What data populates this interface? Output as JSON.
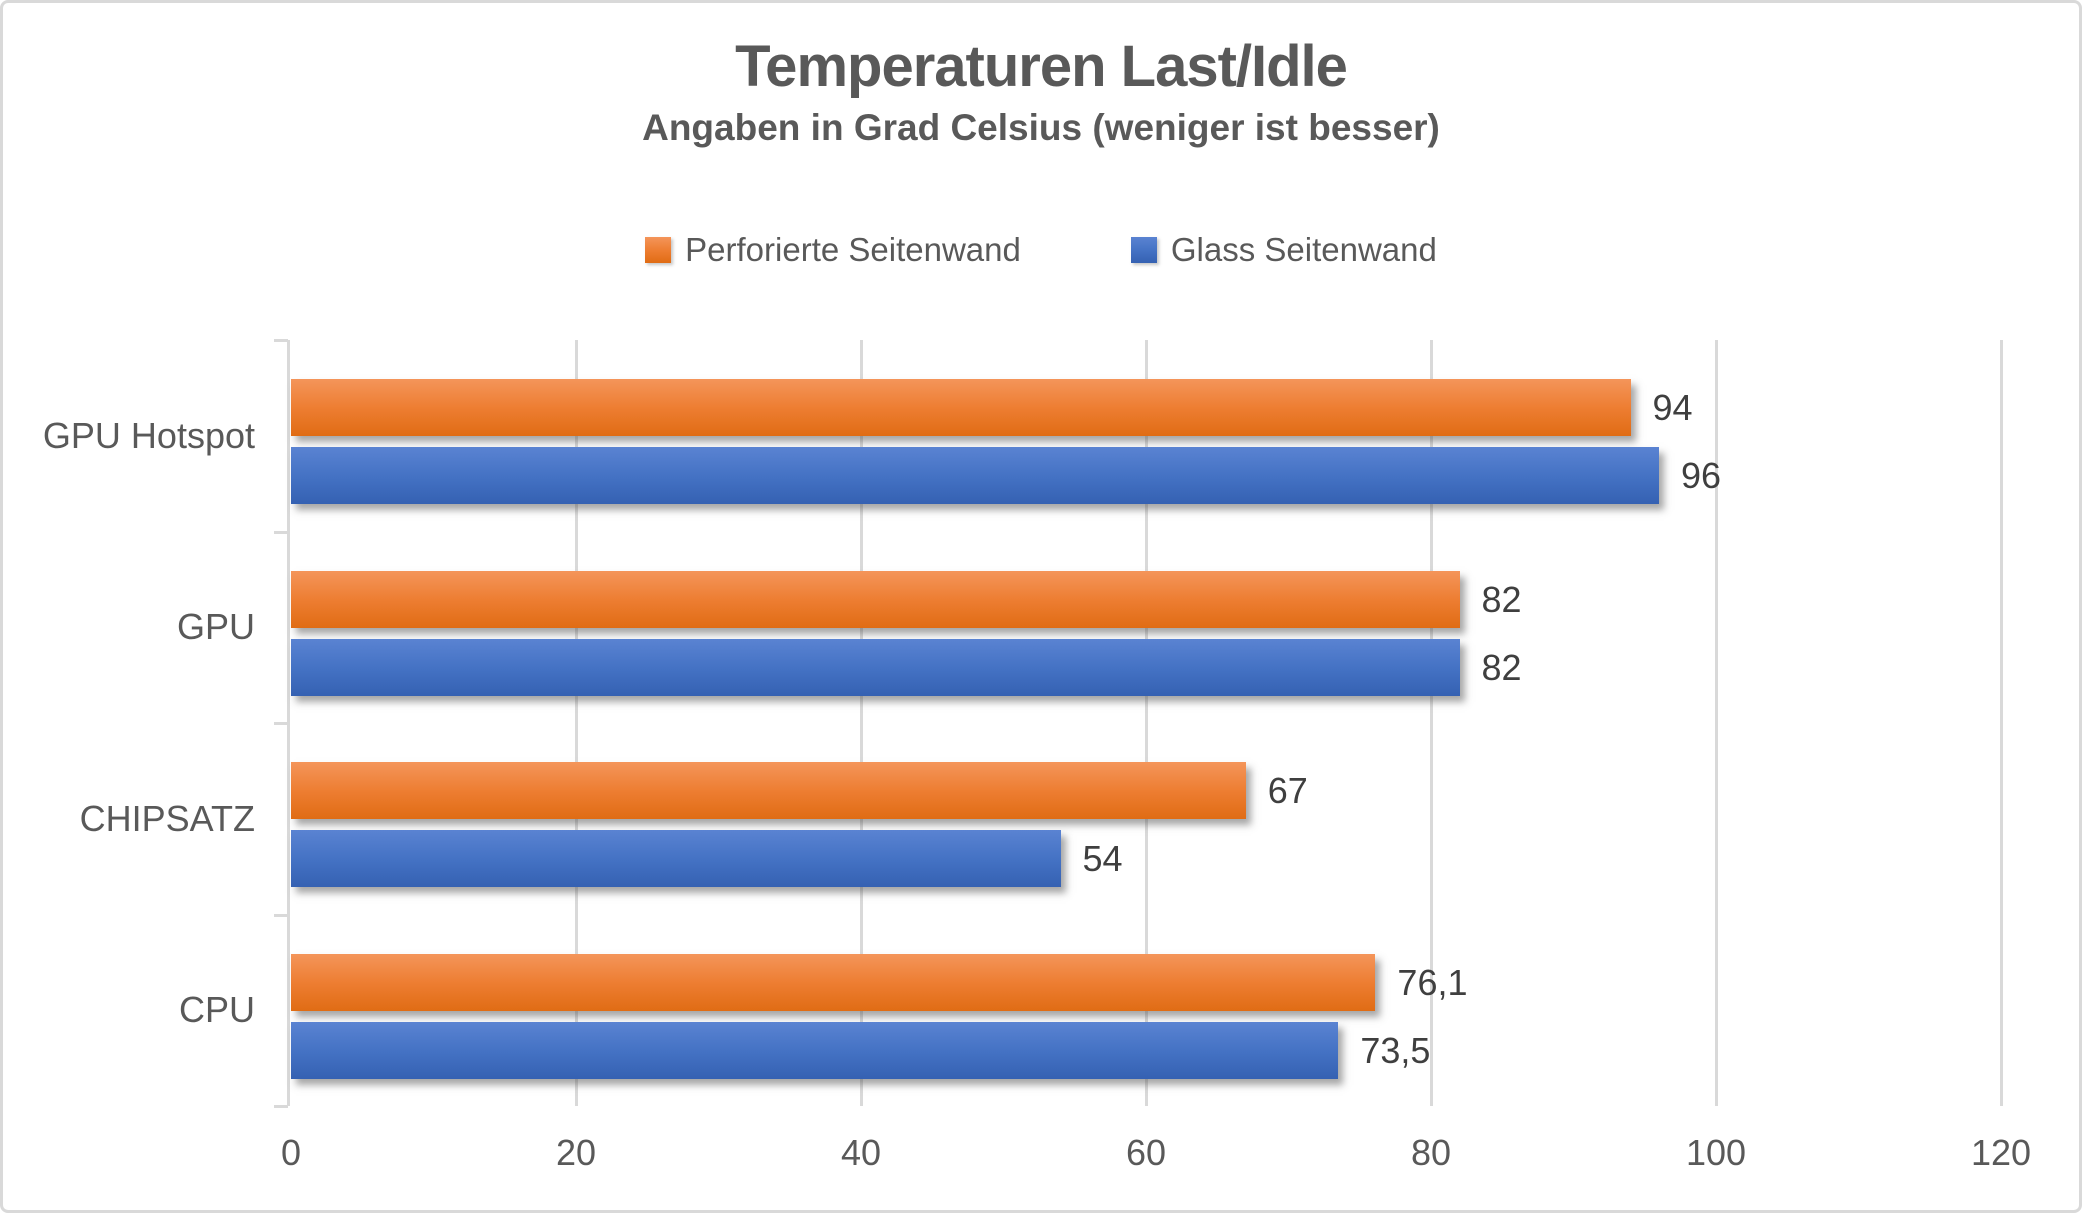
{
  "chart_data": {
    "type": "bar",
    "orientation": "horizontal",
    "title": "Temperaturen Last/Idle",
    "subtitle": "Angaben in Grad Celsius (weniger ist besser)",
    "categories": [
      "GPU Hotspot",
      "GPU",
      "CHIPSATZ",
      "CPU"
    ],
    "series": [
      {
        "name": "Perforierte Seitenwand",
        "color": "#ED7D31",
        "color_gradient": [
          "#F4955A",
          "#E06C14"
        ],
        "values": [
          94,
          82,
          67,
          76.1
        ],
        "value_labels": [
          "94",
          "82",
          "67",
          "76,1"
        ]
      },
      {
        "name": "Glass Seitenwand",
        "color": "#4472C4",
        "color_gradient": [
          "#5A83D2",
          "#3561B2"
        ],
        "values": [
          96,
          82,
          54,
          73.5
        ],
        "value_labels": [
          "96",
          "82",
          "54",
          "73,5"
        ]
      }
    ],
    "x_axis": {
      "min": 0,
      "max": 120,
      "tick_step": 20,
      "tick_labels": [
        "0",
        "20",
        "40",
        "60",
        "80",
        "100",
        "120"
      ]
    },
    "legend_position": "top",
    "grid": true
  },
  "style": {
    "text_color": "#595959",
    "value_label_color": "#3F3F3F",
    "grid_color": "#D9D9D9",
    "border_color": "#D9D9D9",
    "background": "#FFFFFF"
  }
}
